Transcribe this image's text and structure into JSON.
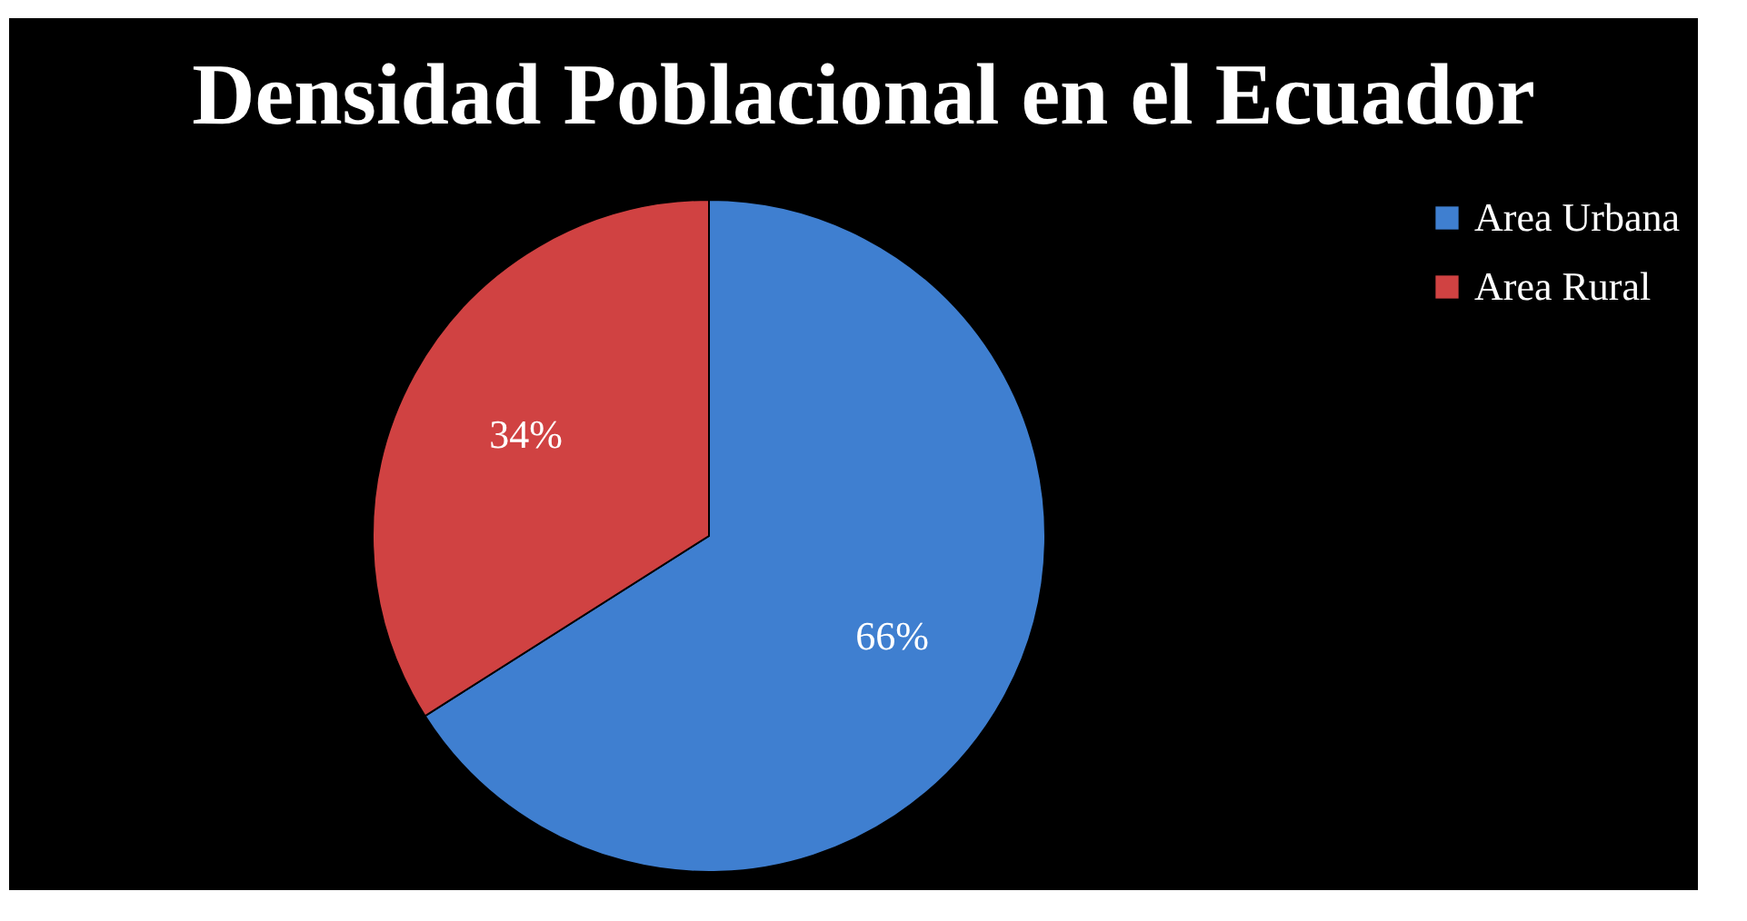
{
  "chart_data": {
    "type": "pie",
    "title": "Densidad Poblacional en el Ecuador",
    "categories": [
      "Area Urbana",
      "Area Rural"
    ],
    "values": [
      66,
      34
    ],
    "value_labels": [
      "66%",
      "34%"
    ],
    "colors": [
      "#3f7fd0",
      "#d04242"
    ],
    "legend": "right"
  }
}
